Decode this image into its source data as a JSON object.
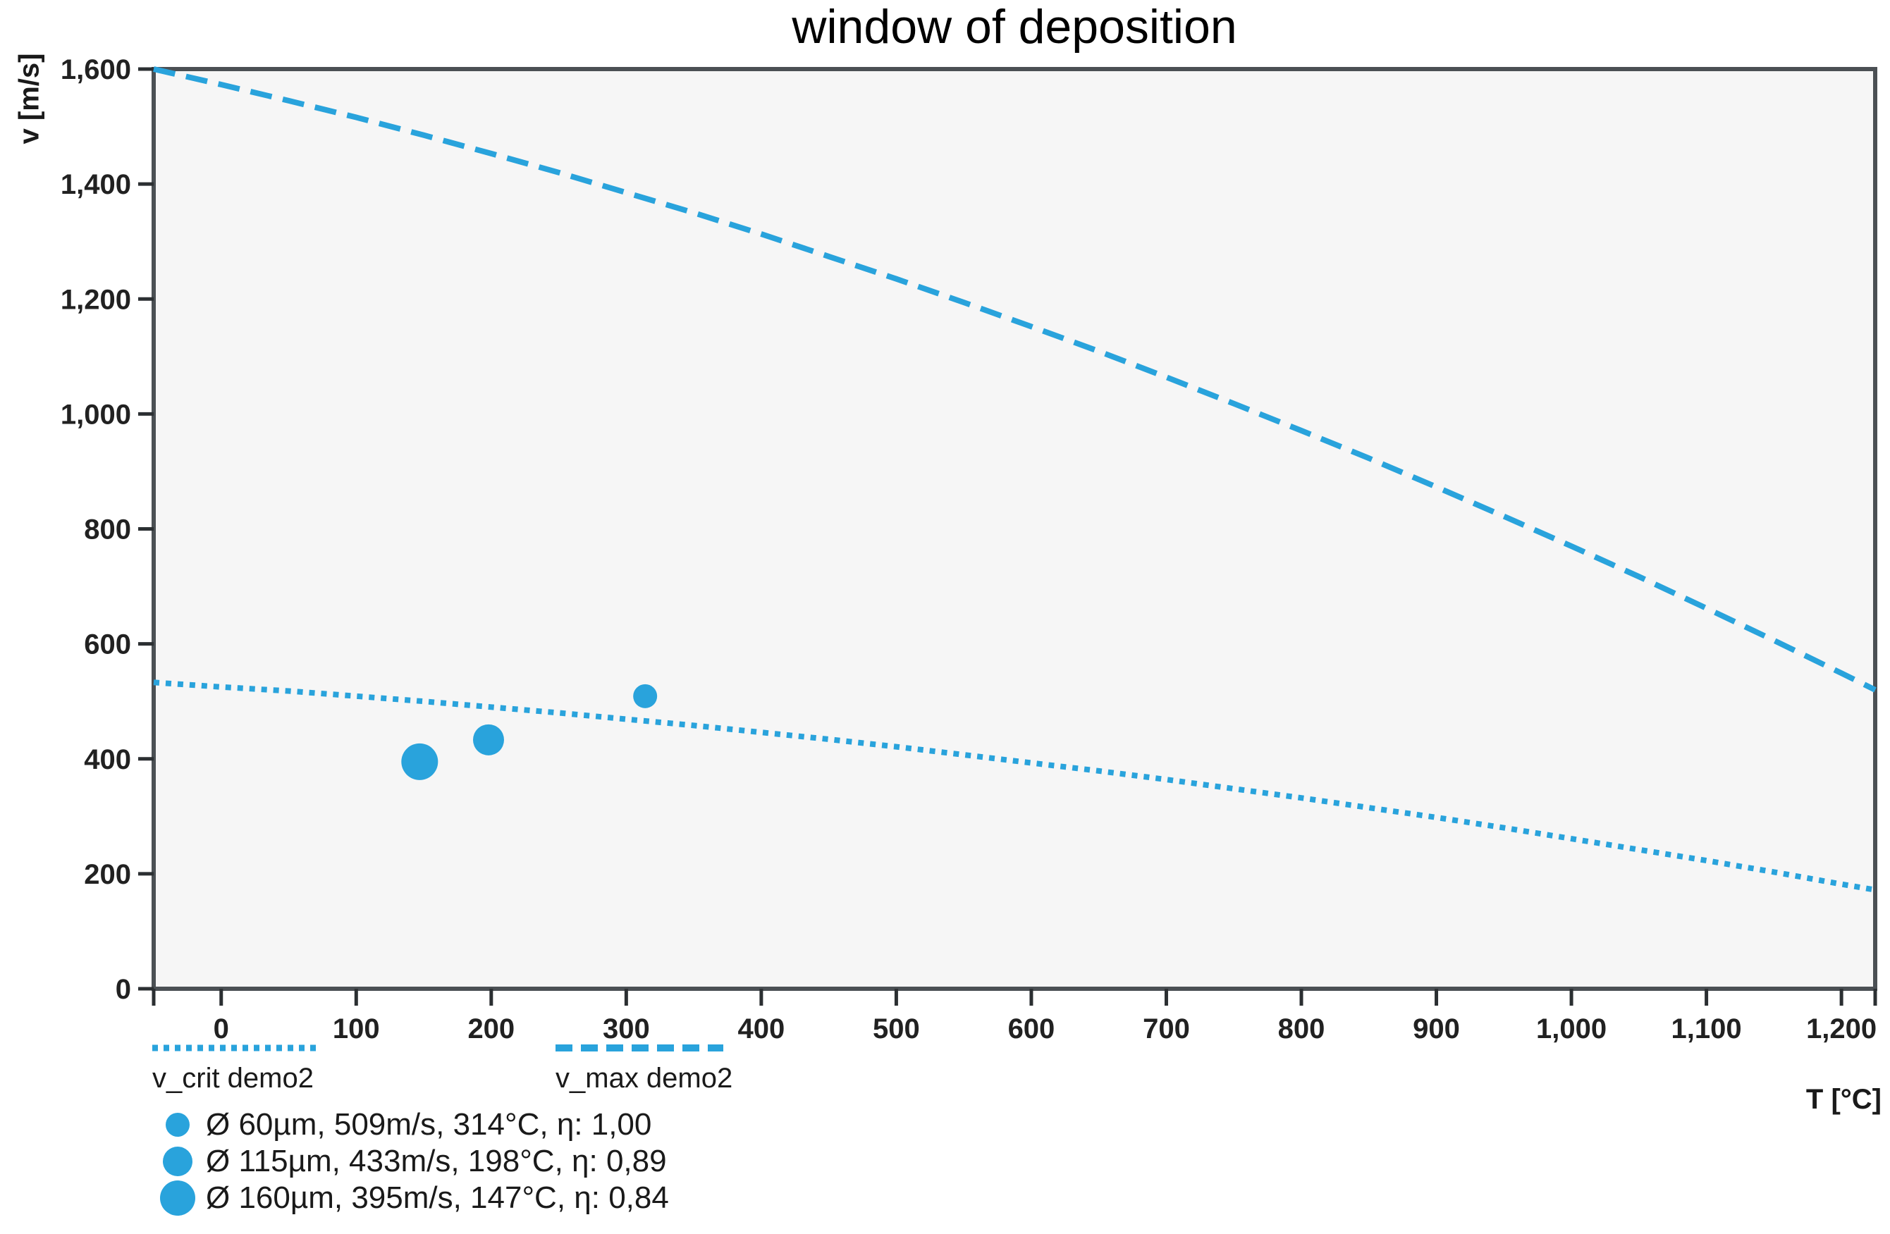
{
  "colors": {
    "accent": "#29A3DC",
    "frame": "#4B5054",
    "tick": "#2B2F32",
    "tick_text": "#212121",
    "plot_background": "#F6F6F6",
    "page_background": "#FFFFFF"
  },
  "chart_data": {
    "type": "line",
    "title": "window of deposition",
    "xlabel": "T [°C]",
    "ylabel": "v [m/s]",
    "xlim": [
      -50,
      1225
    ],
    "ylim": [
      0,
      1600
    ],
    "grid": false,
    "legend_position": "below-left",
    "x_ticks": {
      "values": [
        0,
        100,
        200,
        300,
        400,
        500,
        600,
        700,
        800,
        900,
        1000,
        1100,
        1200
      ],
      "labels": [
        "0",
        "100",
        "200",
        "300",
        "400",
        "500",
        "600",
        "700",
        "800",
        "900",
        "1,000",
        "1,100",
        "1,200"
      ],
      "edge_ticks": [
        -50,
        1225
      ]
    },
    "y_ticks": {
      "values": [
        0,
        200,
        400,
        600,
        800,
        1000,
        1200,
        1400,
        1600
      ],
      "labels": [
        "0",
        "200",
        "400",
        "600",
        "800",
        "1,000",
        "1,200",
        "1,400",
        "1,600"
      ]
    },
    "series": [
      {
        "name": "v_crit demo2",
        "type": "line",
        "line_style": "dotted",
        "color": "#29A3DC",
        "points": [
          [
            -50,
            533
          ],
          [
            0,
            525
          ],
          [
            50,
            518
          ],
          [
            100,
            509
          ],
          [
            150,
            500
          ],
          [
            200,
            490
          ],
          [
            250,
            480
          ],
          [
            300,
            469
          ],
          [
            350,
            458
          ],
          [
            400,
            446
          ],
          [
            450,
            434
          ],
          [
            500,
            421
          ],
          [
            550,
            407
          ],
          [
            600,
            393
          ],
          [
            650,
            379
          ],
          [
            700,
            364
          ],
          [
            750,
            348
          ],
          [
            800,
            332
          ],
          [
            850,
            315
          ],
          [
            900,
            298
          ],
          [
            950,
            280
          ],
          [
            1000,
            261
          ],
          [
            1050,
            242
          ],
          [
            1100,
            223
          ],
          [
            1150,
            203
          ],
          [
            1200,
            182
          ],
          [
            1225,
            172
          ]
        ]
      },
      {
        "name": "v_max demo2",
        "type": "line",
        "line_style": "dashed",
        "color": "#29A3DC",
        "points": [
          [
            -50,
            1600
          ],
          [
            0,
            1573
          ],
          [
            50,
            1545
          ],
          [
            100,
            1516
          ],
          [
            150,
            1485
          ],
          [
            200,
            1453
          ],
          [
            250,
            1420
          ],
          [
            300,
            1385
          ],
          [
            350,
            1350
          ],
          [
            400,
            1313
          ],
          [
            450,
            1274
          ],
          [
            500,
            1235
          ],
          [
            550,
            1194
          ],
          [
            600,
            1152
          ],
          [
            650,
            1109
          ],
          [
            700,
            1064
          ],
          [
            750,
            1018
          ],
          [
            800,
            971
          ],
          [
            850,
            923
          ],
          [
            900,
            873
          ],
          [
            950,
            822
          ],
          [
            1000,
            770
          ],
          [
            1050,
            717
          ],
          [
            1100,
            662
          ],
          [
            1150,
            606
          ],
          [
            1200,
            549
          ],
          [
            1225,
            520
          ]
        ]
      }
    ],
    "scatter_series": [
      {
        "name": "Ø 60µm, 509m/s, 314°C, η: 1,00",
        "x": 314,
        "y": 509,
        "diameter_um": 60,
        "marker_radius": 17,
        "color": "#29A3DC"
      },
      {
        "name": "Ø 115µm, 433m/s, 198°C, η: 0,89",
        "x": 198,
        "y": 433,
        "diameter_um": 115,
        "marker_radius": 22,
        "color": "#29A3DC"
      },
      {
        "name": "Ø 160µm, 395m/s, 147°C, η: 0,84",
        "x": 147,
        "y": 395,
        "diameter_um": 160,
        "marker_radius": 26,
        "color": "#29A3DC"
      }
    ],
    "legend": {
      "line_items": [
        "v_crit demo2",
        "v_max demo2"
      ],
      "scatter_marker_radii": [
        17,
        21,
        25
      ]
    }
  }
}
